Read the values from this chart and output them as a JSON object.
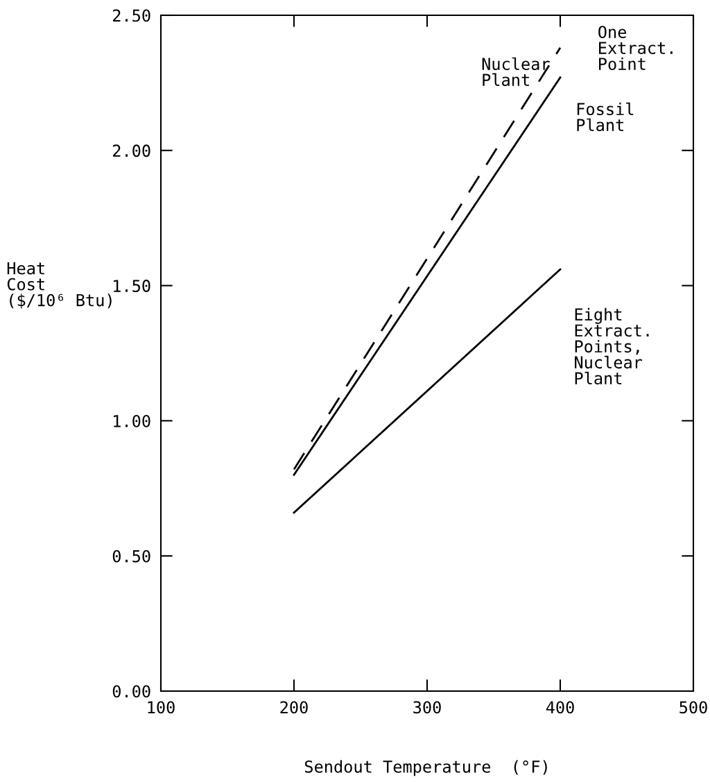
{
  "chart_data": {
    "type": "line",
    "xlabel": "Sendout Temperature  (°F)",
    "ylabel": "Heat\nCost\n($/10⁶ Btu)",
    "x": [
      200,
      400
    ],
    "series": [
      {
        "name": "Nuclear\nPlant",
        "color": "#000000",
        "values": [
          0.82,
          2.38
        ],
        "line_style": "dashed"
      },
      {
        "name": "Fossil\nPlant",
        "color": "#000000",
        "values": [
          0.8,
          2.27
        ],
        "line_style": "solid"
      },
      {
        "name": "Eight\nExtract.\nPoints,\nNuclear\nPlant",
        "color": "#000000",
        "values": [
          0.66,
          1.56
        ],
        "line_style": "solid"
      }
    ],
    "annotations": [
      "One\nExtract.\nPoint"
    ],
    "xlim": [
      100,
      500
    ],
    "xticks": [
      100,
      200,
      300,
      400,
      500
    ],
    "ylim": [
      0,
      2.5
    ],
    "yticks": [
      {
        "value": 0,
        "label": "0.00"
      },
      {
        "value": 0.5,
        "label": "0.50"
      },
      {
        "value": 1.0,
        "label": "1.00"
      },
      {
        "value": 1.5,
        "label": "1.50"
      },
      {
        "value": 2.0,
        "label": "2.00"
      },
      {
        "value": 2.5,
        "label": "2.50"
      }
    ],
    "grid": false,
    "legend": false,
    "marker": "none"
  }
}
